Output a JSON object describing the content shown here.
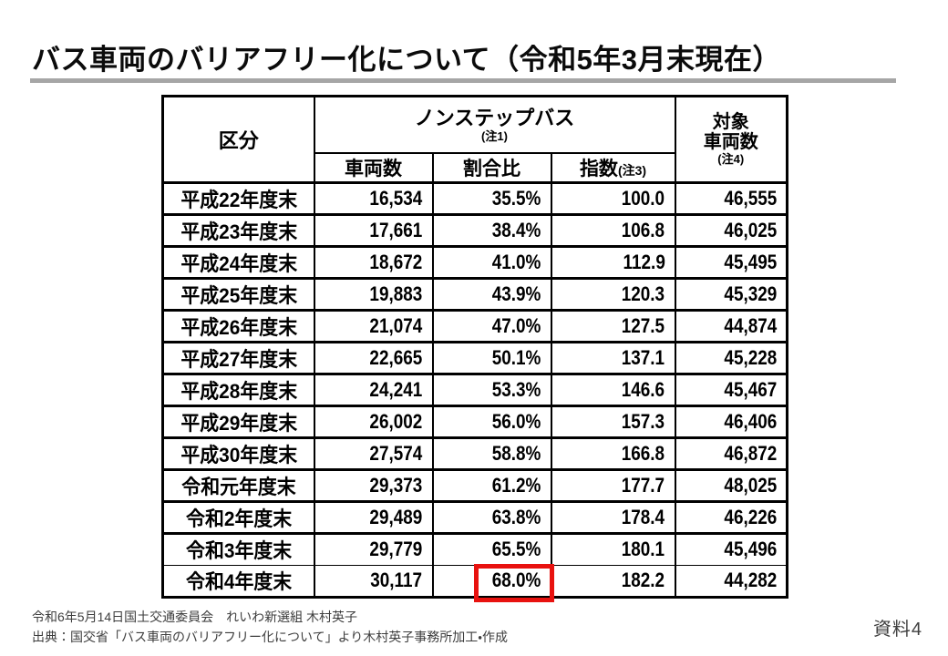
{
  "title": "バス車両のバリアフリー化について（令和5年3月末現在）",
  "colors": {
    "accent_red": "#e8120f",
    "rule_gray": "#a6a6a6",
    "border_black": "#000000",
    "footer_gray": "#3d3d3d"
  },
  "table": {
    "header": {
      "kubun": "区分",
      "group": "ノンステップバス",
      "group_note": "(注1)",
      "col_vehicles": "車両数",
      "col_ratio": "割合比",
      "col_index": "指数",
      "col_index_note": "(注3)",
      "target_line1": "対象",
      "target_line2": "車両数",
      "target_note": "(注4)"
    },
    "rows": [
      {
        "label": "平成22年度末",
        "vehicles": "16,534",
        "ratio": "35.5%",
        "index": "100.0",
        "target": "46,555"
      },
      {
        "label": "平成23年度末",
        "vehicles": "17,661",
        "ratio": "38.4%",
        "index": "106.8",
        "target": "46,025"
      },
      {
        "label": "平成24年度末",
        "vehicles": "18,672",
        "ratio": "41.0%",
        "index": "112.9",
        "target": "45,495"
      },
      {
        "label": "平成25年度末",
        "vehicles": "19,883",
        "ratio": "43.9%",
        "index": "120.3",
        "target": "45,329"
      },
      {
        "label": "平成26年度末",
        "vehicles": "21,074",
        "ratio": "47.0%",
        "index": "127.5",
        "target": "44,874"
      },
      {
        "label": "平成27年度末",
        "vehicles": "22,665",
        "ratio": "50.1%",
        "index": "137.1",
        "target": "45,228"
      },
      {
        "label": "平成28年度末",
        "vehicles": "24,241",
        "ratio": "53.3%",
        "index": "146.6",
        "target": "45,467"
      },
      {
        "label": "平成29年度末",
        "vehicles": "26,002",
        "ratio": "56.0%",
        "index": "157.3",
        "target": "46,406"
      },
      {
        "label": "平成30年度末",
        "vehicles": "27,574",
        "ratio": "58.8%",
        "index": "166.8",
        "target": "46,872"
      },
      {
        "label": "令和元年度末",
        "vehicles": "29,373",
        "ratio": "61.2%",
        "index": "177.7",
        "target": "48,025"
      },
      {
        "label": "令和2年度末",
        "vehicles": "29,489",
        "ratio": "63.8%",
        "index": "178.4",
        "target": "46,226"
      },
      {
        "label": "令和3年度末",
        "vehicles": "29,779",
        "ratio": "65.5%",
        "index": "180.1",
        "target": "45,496"
      },
      {
        "label": "令和4年度末",
        "vehicles": "30,117",
        "ratio": "68.0%",
        "index": "182.2",
        "target": "44,282"
      }
    ],
    "highlight": {
      "row_index": 12,
      "column_key": "ratio",
      "value": "68.0%"
    },
    "thin_separator_above_row_index": 12
  },
  "footer": {
    "line1": "令和6年5月14日国土交通委員会　れいわ新選組 木村英子",
    "line2": "出典：国交省「バス車両のバリアフリー化について」より木村英子事務所加工・作成",
    "doc_label": "資料4"
  }
}
